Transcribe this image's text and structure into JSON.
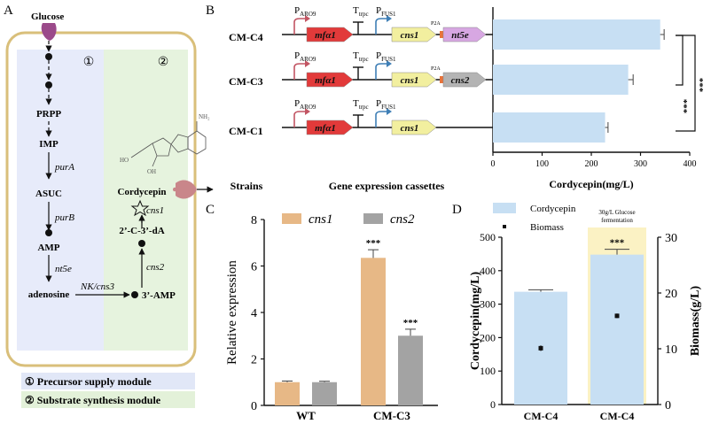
{
  "colors": {
    "cell_border": "#d9bf7a",
    "module1_bg": "#e7ebfa",
    "module2_bg": "#e6f3de",
    "legend1_bg": "#e1e7f7",
    "legend2_bg": "#e3f1d9",
    "glucose": "#9b4a8a",
    "export_arrow": "#c9868a",
    "mfa1": "#e23a3a",
    "cns1": "#f2ef9f",
    "cns2": "#b4b4b4",
    "nt5e": "#d7a7e2",
    "p2a": "#e8733a",
    "promoter_ARO9": "#c25563",
    "promoter_FUS1": "#3f7fb6",
    "bar_blue": "#c7dff3",
    "bar_orange": "#e7b886",
    "bar_gray": "#a3a3a3",
    "highlight": "#fbf2c4"
  },
  "panelA": {
    "label": "A",
    "glucose": "Glucose",
    "module1_num": "①",
    "module2_num": "②",
    "metabolites": [
      "PRPP",
      "IMP",
      "ASUC",
      "AMP",
      "adenosine"
    ],
    "enzymes": [
      "purA",
      "purB",
      "nt5e"
    ],
    "nk_label": "NK/cns3",
    "amp3": "3’-AMP",
    "c3da": "2’-C-3’-dA",
    "cordycepin": "Cordycepin",
    "enzyme_cns2": "cns2",
    "enzyme_cns1": "cns1",
    "legend1": "① Precursor supply module",
    "legend2": "② Substrate synthesis module",
    "structure_labels": [
      "NH₂",
      "HO",
      "OH"
    ]
  },
  "panelB": {
    "label": "B",
    "strains": [
      "CM-C4",
      "CM-C3",
      "CM-C1"
    ],
    "col_strains": "Strains",
    "col_cassettes": "Gene expression cassettes",
    "promoter1": "P",
    "promoter1_sub": "ARO9",
    "terminator": "T",
    "terminator_sub": "trpc",
    "promoter2": "P",
    "promoter2_sub": "FUS1",
    "gene_mfa1": "mfα1",
    "gene_cns1": "cns1",
    "gene_cns2": "cns2",
    "gene_nt5e": "nt5e",
    "p2a": "P2A",
    "sig_1": "***",
    "sig_2": "***"
  },
  "chart_data": [
    {
      "panel": "B",
      "type": "bar",
      "orientation": "horizontal",
      "categories": [
        "CM-C4",
        "CM-C3",
        "CM-C1"
      ],
      "values": [
        340,
        275,
        228
      ],
      "errors": [
        8,
        10,
        6
      ],
      "xlabel": "Cordycepin(mg/L)",
      "xlim": [
        0,
        400
      ],
      "xticks": [
        "0",
        "100",
        "200",
        "300",
        "400"
      ]
    },
    {
      "panel": "C",
      "label": "C",
      "type": "bar",
      "categories": [
        "WT",
        "CM-C3"
      ],
      "series": [
        {
          "name": "cns1",
          "values": [
            1.0,
            6.35
          ],
          "errors": [
            0.05,
            0.35
          ],
          "sig": [
            "",
            "***"
          ]
        },
        {
          "name": "cns2",
          "values": [
            1.0,
            3.0
          ],
          "errors": [
            0.04,
            0.28
          ],
          "sig": [
            "",
            "***"
          ]
        }
      ],
      "ylabel": "Relative expression",
      "ylim": [
        0,
        8
      ],
      "yticks": [
        "0",
        "2",
        "4",
        "6",
        "8"
      ]
    },
    {
      "panel": "D",
      "label": "D",
      "type": "bar",
      "categories": [
        "CM-C4",
        "CM-C4"
      ],
      "series": [
        {
          "name": "Cordycepin",
          "values": [
            337,
            448
          ],
          "errors": [
            6,
            16
          ],
          "sig": [
            "",
            "***"
          ]
        },
        {
          "name": "Biomass",
          "values": [
            10.1,
            15.9
          ],
          "errors": [
            0.5,
            0.4
          ]
        }
      ],
      "ylabel": "Cordycepin(mg/L)",
      "y2label": "Biomass(g/L)",
      "ylim": [
        0,
        500
      ],
      "y2lim": [
        0,
        30
      ],
      "yticks": [
        "0",
        "100",
        "200",
        "300",
        "400",
        "500"
      ],
      "y2ticks": [
        "0",
        "10",
        "20",
        "30"
      ],
      "annotation": [
        "30g/L Glucose",
        "fermentation"
      ]
    }
  ]
}
